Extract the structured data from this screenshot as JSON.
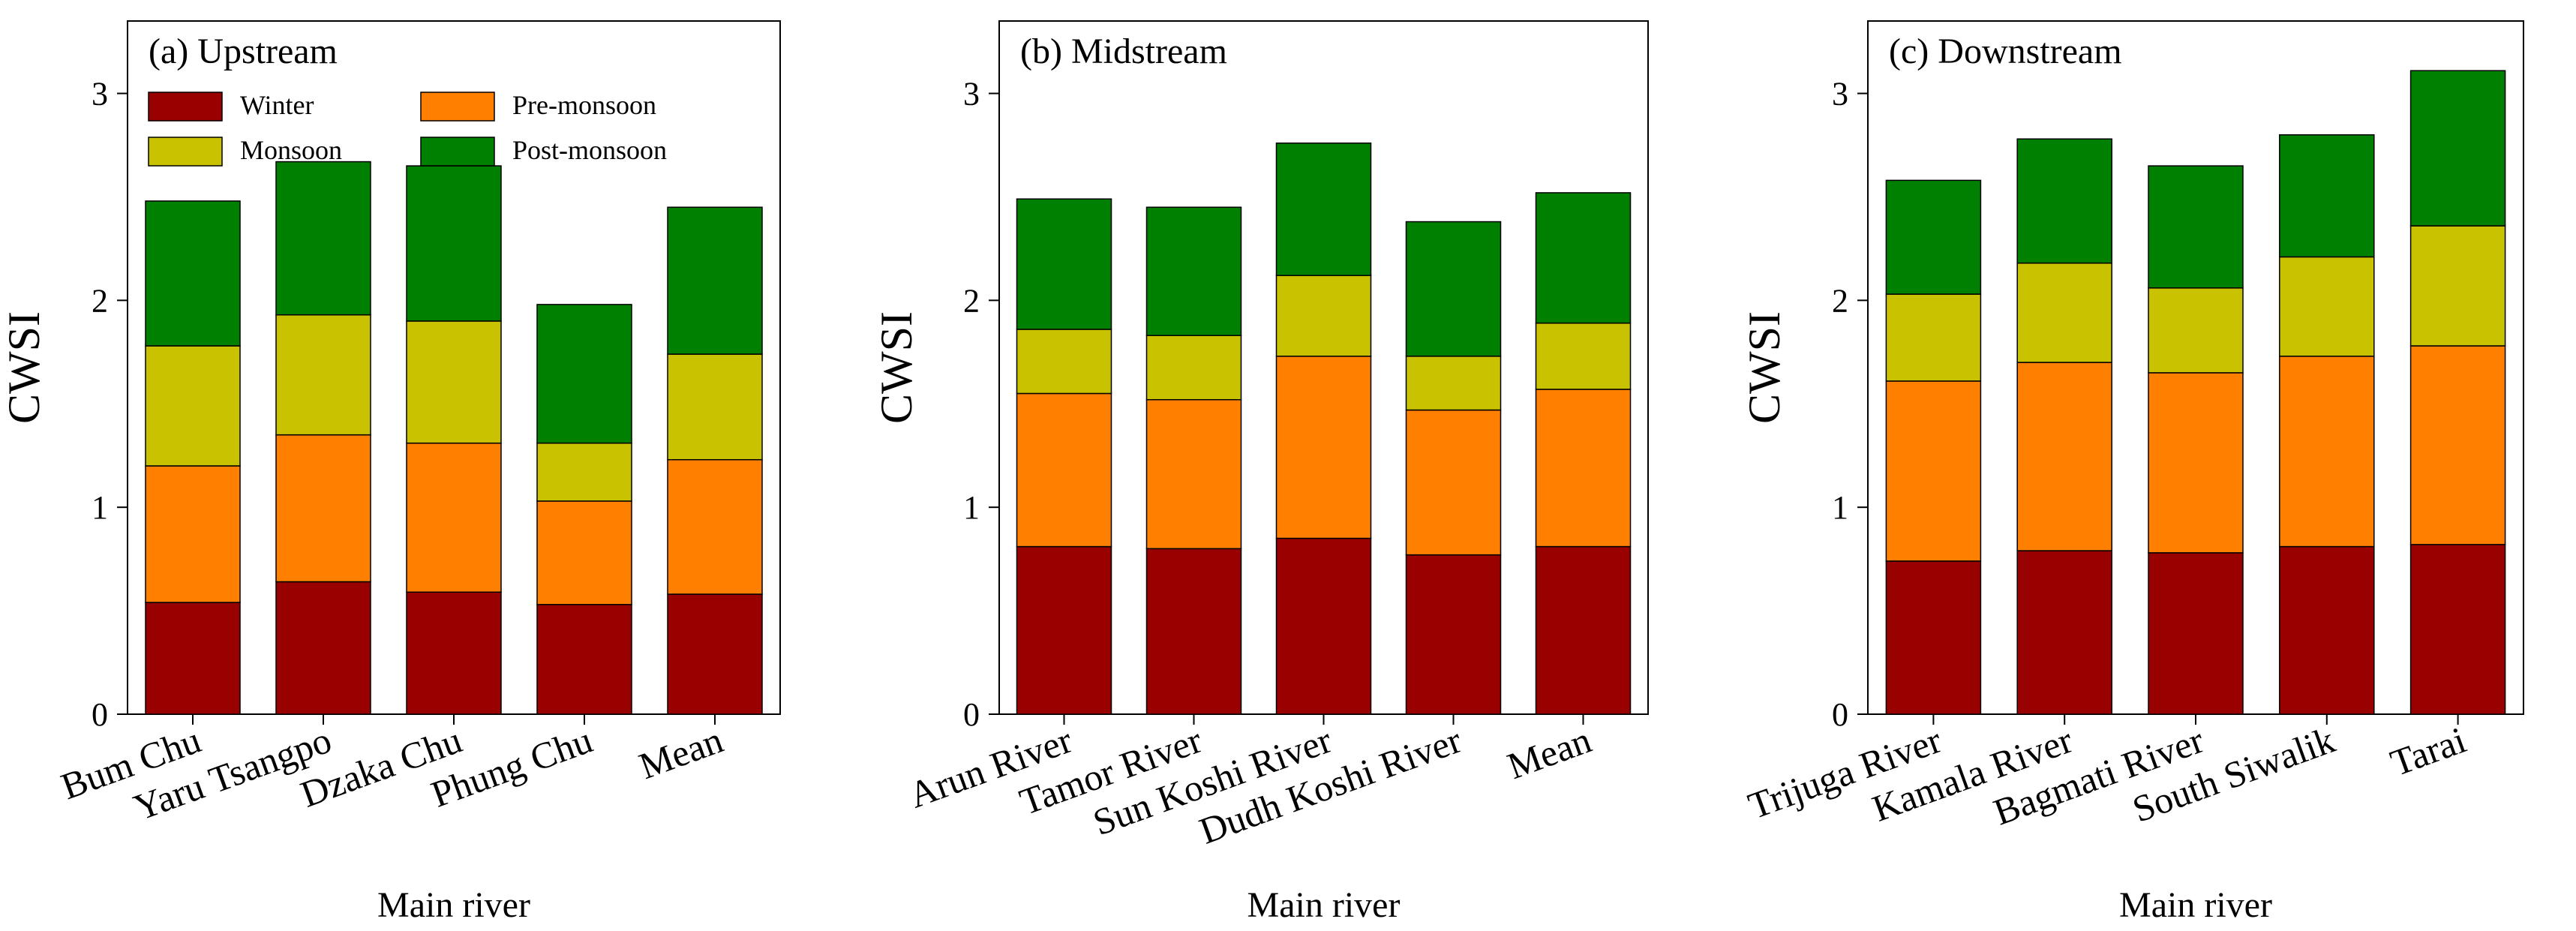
{
  "figure": {
    "legend_title_series": [
      "Winter",
      "Pre-monsoon",
      "Monsoon",
      "Post-monsoon"
    ]
  },
  "colors": {
    "Winter": "#990000",
    "Pre-monsoon": "#ff8000",
    "Monsoon": "#c8c200",
    "Post-monsoon": "#008000"
  },
  "chart_data": [
    {
      "type": "bar",
      "stacked": true,
      "title": "(a) Upstream",
      "xlabel": "Main river",
      "ylabel": "CWSI",
      "ylim": [
        0,
        3.35
      ],
      "yticks": [
        0,
        1,
        2,
        3
      ],
      "legend": "top-left",
      "categories": [
        "Bum Chu",
        "Yaru Tsangpo",
        "Dzaka Chu",
        "Phung Chu",
        "Mean"
      ],
      "series": [
        {
          "name": "Winter",
          "values": [
            0.54,
            0.64,
            0.59,
            0.53,
            0.58
          ]
        },
        {
          "name": "Pre-monsoon",
          "values": [
            0.66,
            0.71,
            0.72,
            0.5,
            0.65
          ]
        },
        {
          "name": "Monsoon",
          "values": [
            0.58,
            0.58,
            0.59,
            0.28,
            0.51
          ]
        },
        {
          "name": "Post-monsoon",
          "values": [
            0.7,
            0.74,
            0.75,
            0.67,
            0.71
          ]
        }
      ]
    },
    {
      "type": "bar",
      "stacked": true,
      "title": "(b) Midstream",
      "xlabel": "Main river",
      "ylabel": "CWSI",
      "ylim": [
        0,
        3.35
      ],
      "yticks": [
        0,
        1,
        2,
        3
      ],
      "categories": [
        "Arun River",
        "Tamor River",
        "Sun Koshi River",
        "Dudh Koshi River",
        "Mean"
      ],
      "series": [
        {
          "name": "Winter",
          "values": [
            0.81,
            0.8,
            0.85,
            0.77,
            0.81
          ]
        },
        {
          "name": "Pre-monsoon",
          "values": [
            0.74,
            0.72,
            0.88,
            0.7,
            0.76
          ]
        },
        {
          "name": "Monsoon",
          "values": [
            0.31,
            0.31,
            0.39,
            0.26,
            0.32
          ]
        },
        {
          "name": "Post-monsoon",
          "values": [
            0.63,
            0.62,
            0.64,
            0.65,
            0.63
          ]
        }
      ]
    },
    {
      "type": "bar",
      "stacked": true,
      "title": "(c) Downstream",
      "xlabel": "Main river",
      "ylabel": "CWSI",
      "ylim": [
        0,
        3.35
      ],
      "yticks": [
        0,
        1,
        2,
        3
      ],
      "categories": [
        "Trijuga River",
        "Kamala River",
        "Bagmati River",
        "South Siwalik",
        "Tarai"
      ],
      "series": [
        {
          "name": "Winter",
          "values": [
            0.74,
            0.79,
            0.78,
            0.81,
            0.82
          ]
        },
        {
          "name": "Pre-monsoon",
          "values": [
            0.87,
            0.91,
            0.87,
            0.92,
            0.96
          ]
        },
        {
          "name": "Monsoon",
          "values": [
            0.42,
            0.48,
            0.41,
            0.48,
            0.58
          ]
        },
        {
          "name": "Post-monsoon",
          "values": [
            0.55,
            0.6,
            0.59,
            0.59,
            0.75
          ]
        }
      ]
    }
  ]
}
